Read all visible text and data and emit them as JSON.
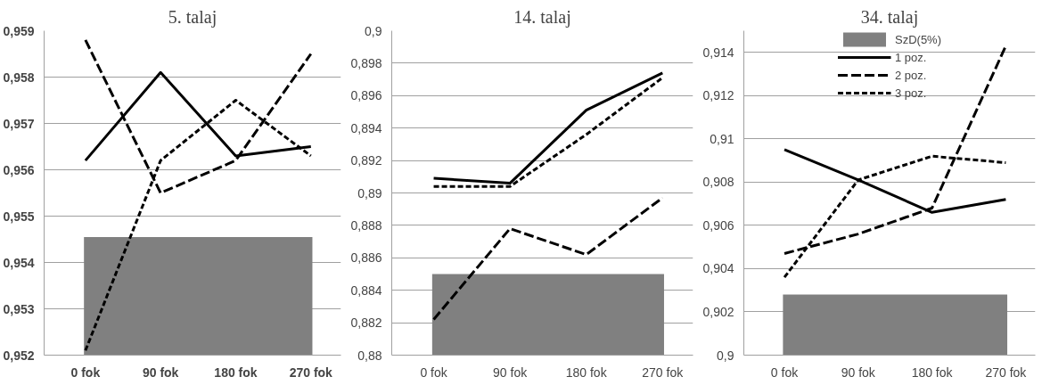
{
  "chart_data": [
    {
      "type": "line",
      "title": "5. talaj",
      "categories": [
        "0 fok",
        "90 fok",
        "180 fok",
        "270 fok"
      ],
      "ylim": [
        0.952,
        0.959
      ],
      "yticks": [
        {
          "value": 0.952,
          "label": "0,952"
        },
        {
          "value": 0.953,
          "label": "0,953"
        },
        {
          "value": 0.954,
          "label": "0,954"
        },
        {
          "value": 0.955,
          "label": "0,955"
        },
        {
          "value": 0.956,
          "label": "0,956"
        },
        {
          "value": 0.957,
          "label": "0,957"
        },
        {
          "value": 0.958,
          "label": "0,958"
        },
        {
          "value": 0.959,
          "label": "0,959"
        }
      ],
      "grid": "y",
      "legend": false,
      "bands": [
        {
          "axis": "y",
          "from": 0.952,
          "to": 0.95455,
          "label": null,
          "color": "#808080"
        }
      ],
      "series": [
        {
          "color": "#000000",
          "line_style": "solid",
          "values": [
            0.9562,
            0.9581,
            0.9563,
            0.9565
          ]
        },
        {
          "color": "#000000",
          "line_style": "dashed",
          "values": [
            0.9588,
            0.9555,
            0.9562,
            0.9585
          ]
        },
        {
          "color": "#000000",
          "line_style": "dashed",
          "values": [
            0.9521,
            0.9562,
            0.9575,
            0.9563
          ]
        }
      ]
    },
    {
      "type": "line",
      "title": "14. talaj",
      "categories": [
        "0 fok",
        "90 fok",
        "180 fok",
        "270 fok"
      ],
      "ylim": [
        0.88,
        0.9
      ],
      "yticks": [
        {
          "value": 0.88,
          "label": "0,88"
        },
        {
          "value": 0.882,
          "label": "0,882"
        },
        {
          "value": 0.884,
          "label": "0,884"
        },
        {
          "value": 0.886,
          "label": "0,886"
        },
        {
          "value": 0.888,
          "label": "0,888"
        },
        {
          "value": 0.89,
          "label": "0,89"
        },
        {
          "value": 0.892,
          "label": "0,892"
        },
        {
          "value": 0.894,
          "label": "0,894"
        },
        {
          "value": 0.896,
          "label": "0,896"
        },
        {
          "value": 0.898,
          "label": "0,898"
        },
        {
          "value": 0.9,
          "label": "0,9"
        }
      ],
      "grid": "y",
      "legend": false,
      "bands": [
        {
          "axis": "y",
          "from": 0.88,
          "to": 0.885,
          "label": null,
          "color": "#808080"
        }
      ],
      "series": [
        {
          "color": "#000000",
          "line_style": "solid",
          "values": [
            0.8909,
            0.8906,
            0.8951,
            0.8974
          ]
        },
        {
          "color": "#000000",
          "line_style": "dashed",
          "values": [
            0.8822,
            0.8878,
            0.8862,
            0.8897
          ]
        },
        {
          "color": "#000000",
          "line_style": "dashed",
          "values": [
            0.8904,
            0.8904,
            0.8936,
            0.8971
          ]
        }
      ]
    },
    {
      "type": "line",
      "title": "34. talaj",
      "categories": [
        "0 fok",
        "90 fok",
        "180 fok",
        "270 fok"
      ],
      "ylim": [
        0.9,
        0.915
      ],
      "yticks": [
        {
          "value": 0.9,
          "label": "0,9"
        },
        {
          "value": 0.902,
          "label": "0,902"
        },
        {
          "value": 0.904,
          "label": "0,904"
        },
        {
          "value": 0.906,
          "label": "0,906"
        },
        {
          "value": 0.908,
          "label": "0,908"
        },
        {
          "value": 0.91,
          "label": "0,91"
        },
        {
          "value": 0.912,
          "label": "0,912"
        },
        {
          "value": 0.914,
          "label": "0,914"
        }
      ],
      "grid": "y",
      "legend": "top",
      "bands": [
        {
          "axis": "y",
          "from": 0.9,
          "to": 0.9028,
          "label": "SzD(5%)",
          "color": "#808080"
        }
      ],
      "series": [
        {
          "name": "1 poz.",
          "color": "#000000",
          "line_style": "solid",
          "values": [
            0.9095,
            0.9081,
            0.9066,
            0.9072
          ]
        },
        {
          "name": "2 poz.",
          "color": "#000000",
          "line_style": "dashed",
          "values": [
            0.9047,
            0.9056,
            0.9068,
            0.9143
          ]
        },
        {
          "name": "3 poz.",
          "color": "#000000",
          "line_style": "dashed",
          "values": [
            0.9036,
            0.9081,
            0.9092,
            0.9089
          ]
        }
      ]
    }
  ]
}
